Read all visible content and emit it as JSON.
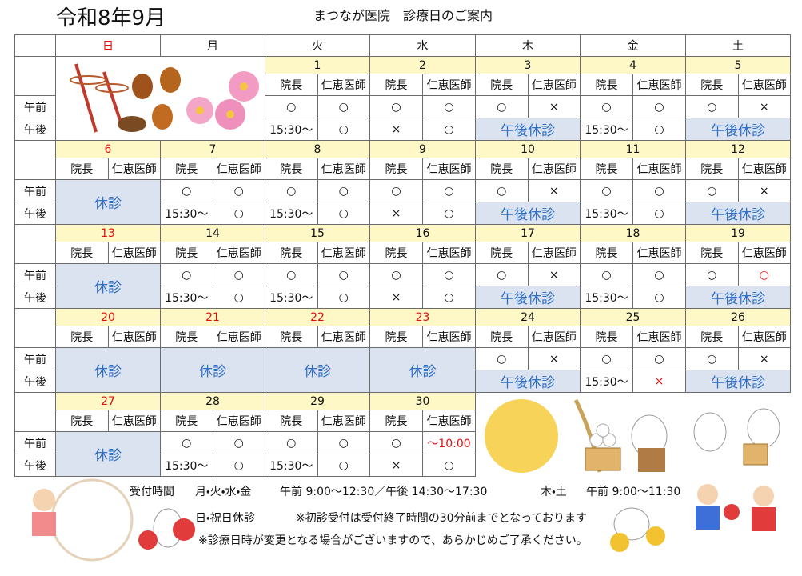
{
  "header": {
    "era_month": "令和8年9月",
    "title": "まつなが医院　診療日のご案内"
  },
  "weekdays": [
    "日",
    "月",
    "火",
    "水",
    "木",
    "金",
    "土"
  ],
  "doctors": [
    "院長",
    "仁恵医師"
  ],
  "periods": [
    "午前",
    "午後"
  ],
  "weeks": [
    [
      null,
      null,
      {
        "date": "1",
        "am": [
          "○",
          "○"
        ],
        "pm": [
          "15:30～",
          "○"
        ]
      },
      {
        "date": "2",
        "am": [
          "○",
          "○"
        ],
        "pm": [
          "×",
          "○"
        ]
      },
      {
        "date": "3",
        "am": [
          "○",
          "×"
        ],
        "pm_closed": "午後休診"
      },
      {
        "date": "4",
        "am": [
          "○",
          "○"
        ],
        "pm": [
          "15:30～",
          "○"
        ]
      },
      {
        "date": "5",
        "am": [
          "○",
          "×"
        ],
        "pm_closed": "午後休診"
      }
    ],
    [
      {
        "date": "6",
        "holiday": true,
        "closed": "休診"
      },
      {
        "date": "7",
        "am": [
          "○",
          "○"
        ],
        "pm": [
          "15:30～",
          "○"
        ]
      },
      {
        "date": "8",
        "am": [
          "○",
          "○"
        ],
        "pm": [
          "15:30～",
          "○"
        ]
      },
      {
        "date": "9",
        "am": [
          "○",
          "○"
        ],
        "pm": [
          "×",
          "○"
        ]
      },
      {
        "date": "10",
        "am": [
          "○",
          "×"
        ],
        "pm_closed": "午後休診"
      },
      {
        "date": "11",
        "am": [
          "○",
          "○"
        ],
        "pm": [
          "15:30～",
          "○"
        ]
      },
      {
        "date": "12",
        "am": [
          "○",
          "×"
        ],
        "pm_closed": "午後休診"
      }
    ],
    [
      {
        "date": "13",
        "holiday": true,
        "closed": "休診"
      },
      {
        "date": "14",
        "am": [
          "○",
          "○"
        ],
        "pm": [
          "15:30～",
          "○"
        ]
      },
      {
        "date": "15",
        "am": [
          "○",
          "○"
        ],
        "pm": [
          "15:30～",
          "○"
        ]
      },
      {
        "date": "16",
        "am": [
          "○",
          "○"
        ],
        "pm": [
          "×",
          "○"
        ]
      },
      {
        "date": "17",
        "am": [
          "○",
          "×"
        ],
        "pm_closed": "午後休診"
      },
      {
        "date": "18",
        "am": [
          "○",
          "○"
        ],
        "pm": [
          "15:30～",
          "○"
        ]
      },
      {
        "date": "19",
        "am": [
          "○",
          {
            "text": "○",
            "color": "#e01010"
          }
        ],
        "pm_closed": "午後休診"
      }
    ],
    [
      {
        "date": "20",
        "holiday": true,
        "closed": "休診"
      },
      {
        "date": "21",
        "holiday": true,
        "closed": "休診"
      },
      {
        "date": "22",
        "holiday": true,
        "closed": "休診"
      },
      {
        "date": "23",
        "holiday": true,
        "closed": "休診"
      },
      {
        "date": "24",
        "am": [
          "○",
          "×"
        ],
        "pm_closed": "午後休診"
      },
      {
        "date": "25",
        "am": [
          "○",
          "○"
        ],
        "pm": [
          "15:30～",
          {
            "text": "×",
            "color": "#e01010"
          }
        ]
      },
      {
        "date": "26",
        "am": [
          "○",
          "×"
        ],
        "pm_closed": "午後休診"
      }
    ],
    [
      {
        "date": "27",
        "holiday": true,
        "closed": "休診"
      },
      {
        "date": "28",
        "am": [
          "○",
          "○"
        ],
        "pm": [
          "15:30～",
          "○"
        ]
      },
      {
        "date": "29",
        "am": [
          "○",
          "○"
        ],
        "pm": [
          "15:30～",
          "○"
        ]
      },
      {
        "date": "30",
        "am": [
          "○",
          {
            "text": "～10:00",
            "color": "#e01010"
          }
        ],
        "pm": [
          "×",
          "○"
        ]
      },
      null,
      null,
      null
    ]
  ],
  "footer": {
    "reception_label": "受付時間",
    "weekday_days": "月・火・水・金",
    "weekday_hours": "午前 9:00～12:30／午後 14:30～17:30",
    "thu_sat_days": "木・土",
    "thu_sat_hours": "午前 9:00～11:30",
    "holiday_note": "日・祝日休診",
    "first_visit_note": "※初診受付は受付終了時間の30分前までとなっております",
    "change_note": "※診療日時が変更となる場合がございますので、あらかじめご了承ください。"
  }
}
